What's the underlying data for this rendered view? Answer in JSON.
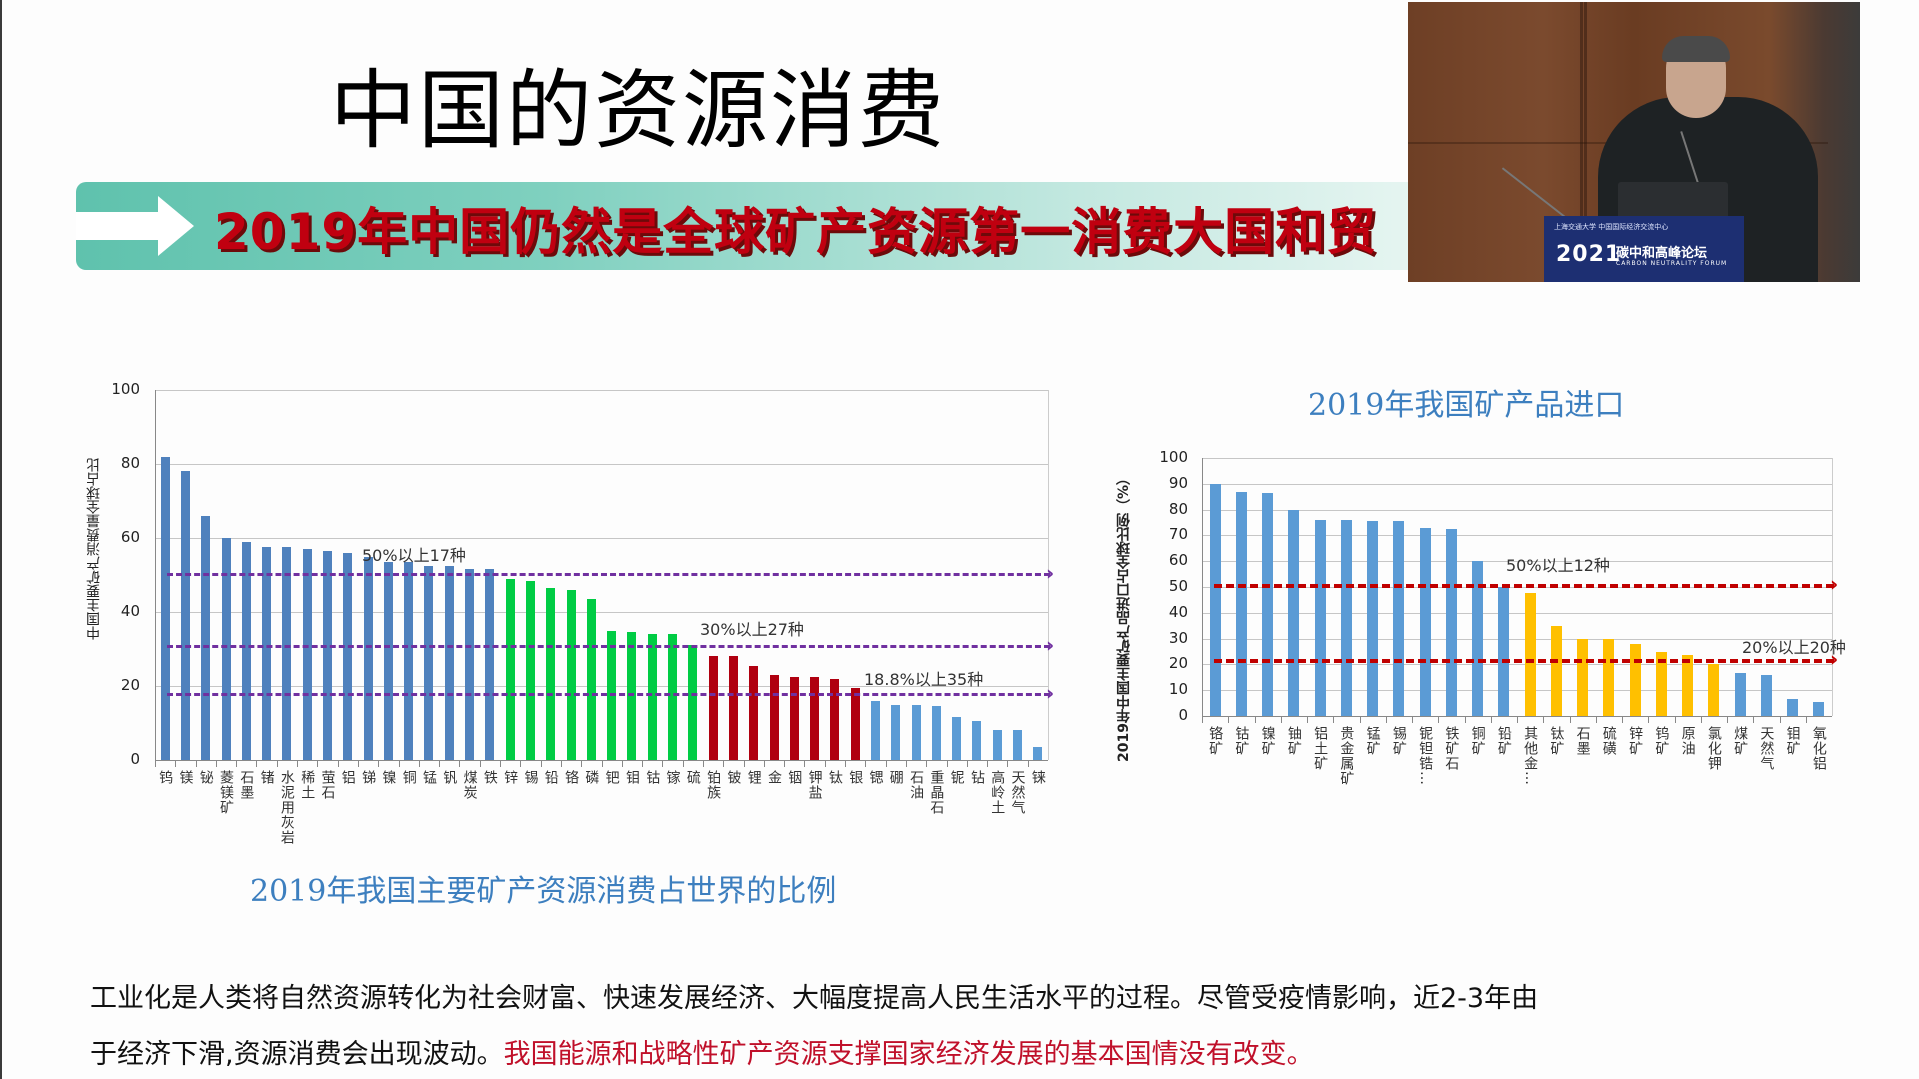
{
  "slide": {
    "title": "中国的资源消费",
    "banner_text": "2019年中国仍然是全球矿产资源第一消费大国和贸",
    "banner_colors": {
      "teal": "#5fc2ad",
      "text_red": "#c00010"
    }
  },
  "video_inset": {
    "podium_year": "2021",
    "podium_name": "碳中和高峰论坛",
    "podium_subtitle": "CARBON NEUTRALITY FORUM",
    "podium_logos": "上海交通大学  中国国际经济交流中心"
  },
  "body": {
    "line1": "工业化是人类将自然资源转化为社会财富、快速发展经济、大幅度提高人民生活水平的过程。尽管受疫情影响，近2-3年由",
    "line2_black": "于经济下滑,资源消费会出现波动。",
    "line2_red": "我国能源和战略性矿产资源支撑国家经济发展的基本国情没有改变。"
  },
  "chart_data": [
    {
      "type": "bar",
      "title": "2019年我国主要矿产资源消费占世界的比例",
      "xlabel": "",
      "ylabel": "中国主要矿产消费量全球占比",
      "ylim": [
        0,
        100
      ],
      "yticks": [
        0,
        20,
        40,
        60,
        80,
        100
      ],
      "grid": true,
      "categories": [
        "钨",
        "镁",
        "铋",
        "菱镁矿",
        "石墨",
        "锗",
        "水泥用灰岩",
        "稀土",
        "萤石",
        "铝",
        "锑",
        "镍",
        "铜",
        "锰",
        "钒",
        "煤炭",
        "铁",
        "锌",
        "锡",
        "铅",
        "铬",
        "磷",
        "钯",
        "钼",
        "钴",
        "镓",
        "硫",
        "铂族",
        "铍",
        "锂",
        "金",
        "铟",
        "钾盐",
        "钛",
        "银",
        "锶",
        "硼",
        "石油",
        "重晶石",
        "铌",
        "钻",
        "高岭土",
        "天然气",
        "铼"
      ],
      "values": [
        82,
        78,
        66,
        60,
        59,
        57.5,
        57.5,
        57,
        56.5,
        56,
        55,
        53.5,
        53.5,
        52.5,
        52.5,
        51.5,
        51.5,
        49,
        48.5,
        46.5,
        46,
        43.5,
        35,
        34.5,
        34,
        34,
        31,
        28,
        28,
        25.5,
        23,
        22.5,
        22.5,
        22,
        19.5,
        16,
        15,
        15,
        14.5,
        11.5,
        10.5,
        8,
        8,
        3.5
      ],
      "colors": [
        "#4f81bd",
        "#4f81bd",
        "#4f81bd",
        "#4f81bd",
        "#4f81bd",
        "#4f81bd",
        "#4f81bd",
        "#4f81bd",
        "#4f81bd",
        "#4f81bd",
        "#4f81bd",
        "#4f81bd",
        "#4f81bd",
        "#4f81bd",
        "#4f81bd",
        "#4f81bd",
        "#4f81bd",
        "#00cc44",
        "#00cc44",
        "#00cc44",
        "#00cc44",
        "#00cc44",
        "#00cc44",
        "#00cc44",
        "#00cc44",
        "#00cc44",
        "#00cc44",
        "#b00010",
        "#b00010",
        "#b00010",
        "#b00010",
        "#b00010",
        "#b00010",
        "#b00010",
        "#b00010",
        "#5b9bd5",
        "#5b9bd5",
        "#5b9bd5",
        "#5b9bd5",
        "#5b9bd5",
        "#5b9bd5",
        "#5b9bd5",
        "#5b9bd5",
        "#5b9bd5"
      ],
      "annotations": [
        {
          "text": "50%以上17种",
          "y": 50.5,
          "color": "#7030a0"
        },
        {
          "text": "30%以上27种",
          "y": 31,
          "color": "#7030a0"
        },
        {
          "text": "18.8%以上35种",
          "y": 18,
          "color": "#7030a0"
        }
      ]
    },
    {
      "type": "bar",
      "title": "2019年我国矿产品进口",
      "xlabel": "",
      "ylabel": "2019年中国主要矿产品进口占全球比例（%）",
      "ylim": [
        0,
        100
      ],
      "yticks": [
        0,
        10,
        20,
        30,
        40,
        50,
        60,
        70,
        80,
        90,
        100
      ],
      "grid": true,
      "categories": [
        "铬矿",
        "钴矿",
        "镍矿",
        "铀矿",
        "铝土矿",
        "贵金属矿",
        "锰矿",
        "锡矿",
        "铌钽锆…",
        "铁矿石",
        "铜矿",
        "铅矿",
        "其他金…",
        "钛矿",
        "石墨",
        "硫磺",
        "锌矿",
        "钨矿",
        "原油",
        "氯化钾",
        "煤矿",
        "天然气",
        "钼矿",
        "氧化铝"
      ],
      "values": [
        90,
        87,
        86.5,
        80,
        76,
        76,
        75.5,
        75.5,
        73,
        72.5,
        60,
        50,
        47.5,
        35,
        30,
        30,
        28,
        25,
        23.5,
        20,
        16.5,
        16,
        6.5,
        5.5
      ],
      "colors": [
        "#5b9bd5",
        "#5b9bd5",
        "#5b9bd5",
        "#5b9bd5",
        "#5b9bd5",
        "#5b9bd5",
        "#5b9bd5",
        "#5b9bd5",
        "#5b9bd5",
        "#5b9bd5",
        "#5b9bd5",
        "#5b9bd5",
        "#ffc000",
        "#ffc000",
        "#ffc000",
        "#ffc000",
        "#ffc000",
        "#ffc000",
        "#ffc000",
        "#ffc000",
        "#5b9bd5",
        "#5b9bd5",
        "#5b9bd5",
        "#5b9bd5"
      ],
      "annotations": [
        {
          "text": "50%以上12种",
          "y": 51,
          "color": "#c00000"
        },
        {
          "text": "20%以上20种",
          "y": 22,
          "color": "#c00000"
        }
      ]
    }
  ]
}
